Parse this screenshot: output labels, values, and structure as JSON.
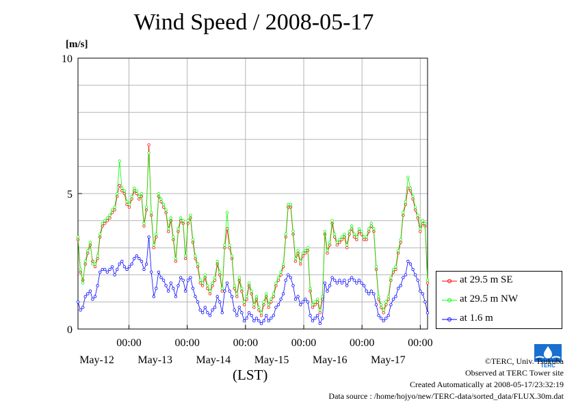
{
  "title": "Wind Speed / 2008-05-17",
  "chart_data": {
    "type": "line",
    "unit_label": "[m/s]",
    "xlabel": "(LST)",
    "ylim": [
      0,
      10
    ],
    "yticks": [
      0,
      5,
      10
    ],
    "ytick_labels": [
      "0",
      "5",
      "10"
    ],
    "xlim": [
      0,
      144
    ],
    "day_ticks": [
      {
        "time": 21,
        "label": "00:00",
        "day": "May-12"
      },
      {
        "time": 45,
        "label": "00:00",
        "day": "May-13"
      },
      {
        "time": 69,
        "label": "00:00",
        "day": "May-14"
      },
      {
        "time": 93,
        "label": "00:00",
        "day": "May-15"
      },
      {
        "time": 117,
        "label": "00:00",
        "day": "May-16"
      },
      {
        "time": 141,
        "label": "00:00",
        "day": "May-17"
      }
    ],
    "grid": true,
    "legend_position": "right",
    "series": [
      {
        "name": "at 29.5 m SE",
        "color": "#ff0000",
        "values": [
          3.3,
          2.1,
          1.8,
          2.4,
          2.8,
          3.1,
          2.5,
          2.3,
          2.6,
          3.4,
          3.8,
          3.9,
          4.0,
          4.1,
          4.3,
          4.4,
          4.9,
          5.3,
          5.1,
          5.0,
          4.6,
          4.5,
          4.8,
          5.1,
          5.0,
          4.8,
          4.9,
          3.8,
          4.4,
          6.8,
          4.2,
          3.0,
          3.4,
          4.9,
          4.7,
          4.5,
          4.3,
          3.6,
          4.0,
          3.3,
          2.5,
          3.6,
          4.0,
          3.9,
          2.6,
          3.9,
          4.1,
          3.2,
          2.6,
          2.3,
          1.7,
          1.6,
          1.9,
          1.5,
          1.3,
          1.6,
          1.8,
          2.4,
          2.0,
          1.4,
          3.0,
          3.7,
          3.0,
          2.6,
          1.5,
          1.2,
          1.8,
          1.4,
          0.9,
          1.1,
          1.6,
          1.3,
          0.8,
          1.1,
          0.7,
          0.5,
          0.9,
          1.2,
          0.8,
          1.0,
          1.2,
          1.6,
          1.8,
          2.0,
          2.3,
          3.4,
          4.5,
          4.5,
          3.5,
          2.5,
          2.8,
          2.4,
          2.7,
          2.8,
          2.9,
          1.4,
          0.8,
          0.9,
          1.0,
          0.6,
          1.1,
          3.5,
          2.8,
          3.1,
          3.9,
          3.4,
          3.1,
          3.2,
          3.3,
          3.4,
          3.0,
          3.5,
          3.7,
          3.4,
          3.3,
          3.6,
          3.5,
          3.3,
          3.3,
          3.6,
          3.8,
          3.6,
          2.2,
          1.1,
          0.8,
          0.6,
          0.9,
          1.1,
          1.8,
          2.1,
          2.2,
          2.8,
          3.2,
          4.2,
          4.6,
          5.2,
          5.1,
          4.8,
          4.4,
          4.1,
          3.6,
          3.9,
          3.8,
          1.7
        ]
      },
      {
        "name": "at 29.5 m NW",
        "color": "#00ff00",
        "values": [
          3.4,
          2.2,
          1.7,
          2.5,
          2.9,
          3.2,
          2.4,
          2.4,
          2.7,
          3.5,
          3.9,
          4.0,
          4.1,
          4.2,
          4.4,
          4.5,
          5.0,
          6.2,
          5.2,
          5.1,
          4.7,
          4.6,
          4.9,
          5.2,
          5.1,
          4.9,
          5.0,
          3.9,
          4.5,
          6.5,
          4.3,
          3.1,
          3.5,
          5.0,
          4.8,
          4.6,
          4.4,
          3.7,
          4.1,
          3.4,
          2.6,
          3.7,
          4.1,
          4.0,
          2.7,
          4.0,
          4.2,
          3.3,
          2.7,
          2.4,
          1.8,
          1.7,
          2.0,
          1.6,
          1.4,
          1.7,
          1.9,
          2.5,
          2.1,
          1.5,
          3.1,
          4.3,
          3.1,
          2.7,
          1.6,
          1.3,
          1.9,
          1.5,
          1.0,
          1.2,
          1.7,
          1.4,
          0.9,
          1.2,
          0.8,
          0.6,
          1.0,
          1.3,
          0.9,
          1.1,
          1.3,
          1.7,
          1.9,
          2.1,
          2.4,
          3.5,
          4.6,
          4.6,
          3.6,
          2.6,
          2.9,
          2.5,
          2.8,
          2.9,
          3.0,
          1.5,
          0.9,
          1.0,
          1.1,
          0.7,
          1.2,
          3.6,
          2.9,
          3.2,
          4.0,
          3.5,
          3.2,
          3.3,
          3.4,
          3.5,
          3.1,
          3.6,
          3.8,
          3.5,
          3.4,
          3.7,
          3.6,
          3.4,
          3.4,
          3.7,
          3.9,
          3.7,
          2.3,
          1.2,
          0.9,
          0.7,
          1.0,
          1.2,
          1.9,
          2.2,
          2.3,
          2.9,
          3.3,
          4.3,
          4.7,
          5.6,
          5.2,
          4.9,
          4.5,
          4.2,
          3.7,
          4.0,
          3.9,
          1.8
        ]
      },
      {
        "name": "at 1.6 m",
        "color": "#0000ff",
        "values": [
          1.0,
          0.7,
          0.8,
          1.2,
          1.3,
          1.4,
          1.1,
          1.2,
          1.6,
          2.1,
          2.2,
          2.2,
          2.1,
          2.2,
          2.3,
          2.0,
          2.2,
          2.4,
          2.5,
          2.3,
          2.2,
          2.3,
          2.4,
          2.6,
          2.7,
          2.6,
          2.5,
          2.2,
          2.4,
          3.4,
          2.1,
          1.2,
          1.5,
          2.1,
          1.9,
          1.8,
          1.6,
          1.4,
          1.7,
          1.5,
          1.2,
          1.6,
          1.9,
          1.8,
          1.4,
          1.8,
          1.9,
          1.5,
          1.2,
          1.0,
          0.7,
          0.6,
          0.8,
          0.6,
          0.5,
          0.7,
          0.8,
          1.2,
          1.0,
          0.6,
          1.4,
          1.7,
          1.4,
          1.2,
          0.7,
          0.5,
          0.8,
          0.6,
          0.3,
          0.4,
          0.6,
          0.5,
          0.3,
          0.4,
          0.3,
          0.2,
          0.3,
          0.5,
          0.3,
          0.4,
          0.5,
          0.8,
          0.9,
          1.1,
          1.3,
          1.8,
          2.0,
          1.9,
          1.6,
          1.1,
          1.2,
          0.9,
          1.0,
          1.1,
          1.0,
          0.5,
          0.3,
          0.4,
          0.5,
          0.2,
          0.4,
          1.7,
          1.4,
          1.6,
          1.9,
          1.8,
          1.7,
          1.8,
          1.7,
          1.8,
          1.6,
          1.8,
          1.9,
          1.8,
          1.7,
          1.8,
          1.7,
          1.6,
          1.4,
          1.3,
          1.4,
          1.3,
          0.9,
          0.5,
          0.4,
          0.3,
          0.4,
          0.5,
          0.9,
          1.1,
          1.2,
          1.5,
          1.6,
          1.9,
          2.0,
          2.5,
          2.4,
          2.2,
          2.0,
          1.8,
          1.4,
          1.3,
          1.0,
          0.6
        ]
      }
    ]
  },
  "credits": {
    "copyright": "©TERC, Univ. Tsukuba",
    "observed": "Observed at TERC Tower site",
    "created": "Created Automatically at 2008-05-17/23:32:19",
    "source": "Data source : /home/hojyo/new/TERC-data/sorted_data/FLUX.30m.dat"
  },
  "logo": {
    "text": "TERC",
    "color": "#1a6fd0"
  }
}
